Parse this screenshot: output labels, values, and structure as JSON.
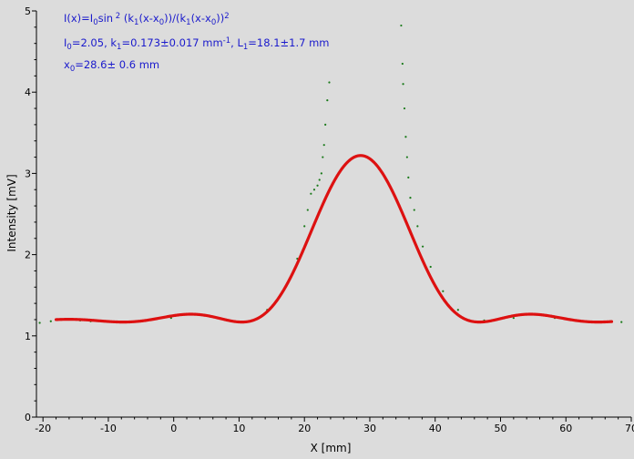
{
  "chart_data": {
    "type": "scatter",
    "xlabel": "X [mm]",
    "ylabel": "Intensity [mV]",
    "xlim": [
      -21,
      70
    ],
    "ylim": [
      0,
      5
    ],
    "x_ticks": [
      -20,
      -10,
      0,
      10,
      20,
      30,
      40,
      50,
      60,
      70
    ],
    "y_ticks": [
      0,
      1,
      2,
      3,
      4,
      5
    ],
    "grid": false,
    "annotations": [
      {
        "segments": [
          {
            "t": "I(x)=I"
          },
          {
            "t": "0",
            "sub": true
          },
          {
            "t": "sin"
          },
          {
            "t": " 2",
            "sup": true
          },
          {
            "t": " (k"
          },
          {
            "t": "1",
            "sub": true
          },
          {
            "t": "(x-x"
          },
          {
            "t": "0",
            "sub": true
          },
          {
            "t": "))/(k"
          },
          {
            "t": "1",
            "sub": true
          },
          {
            "t": "(x-x"
          },
          {
            "t": "0",
            "sub": true
          },
          {
            "t": "))"
          },
          {
            "t": "2",
            "sup": true
          }
        ]
      },
      {
        "segments": [
          {
            "t": "I"
          },
          {
            "t": "0",
            "sub": true
          },
          {
            "t": "=2.05,  k"
          },
          {
            "t": "1",
            "sub": true
          },
          {
            "t": "=0.173±0.017 mm"
          },
          {
            "t": "-1",
            "sup": true
          },
          {
            "t": ",   L"
          },
          {
            "t": "1",
            "sub": true
          },
          {
            "t": "=18.1±1.7 mm"
          }
        ]
      },
      {
        "segments": [
          {
            "t": "x"
          },
          {
            "t": "0",
            "sub": true
          },
          {
            "t": "=28.6±  0.6 mm"
          }
        ]
      }
    ],
    "series": [
      {
        "role": "fit",
        "color": "#dd1111",
        "formula": "I0*sin^2(k1*(x-x0))/(k1*(x-x0))^2 + offset",
        "params": {
          "I0": 2.05,
          "k1": 0.173,
          "x0": 28.6,
          "offset": 1.17
        },
        "x_range": [
          -18,
          67
        ]
      },
      {
        "role": "measured",
        "color": "#1a7a1a",
        "x": [
          -20.5,
          -18.8,
          -14.3,
          -12.7,
          -5.4,
          -0.4,
          14.3,
          17.8,
          18.9,
          20.0,
          20.5,
          21.0,
          21.5,
          22.0,
          22.3,
          22.6,
          22.8,
          23.0,
          23.2,
          23.5,
          23.8,
          34.8,
          35.0,
          35.1,
          35.3,
          35.5,
          35.7,
          35.9,
          36.2,
          36.8,
          37.3,
          38.1,
          39.3,
          41.2,
          43.5,
          47.5,
          52.0,
          58.3,
          64.0,
          66.8,
          68.5
        ],
        "y": [
          1.16,
          1.18,
          1.19,
          1.18,
          1.18,
          1.22,
          1.32,
          1.7,
          1.95,
          2.35,
          2.55,
          2.75,
          2.8,
          2.85,
          2.92,
          3.0,
          3.2,
          3.35,
          3.6,
          3.9,
          4.12,
          4.82,
          4.35,
          4.1,
          3.8,
          3.45,
          3.2,
          2.95,
          2.7,
          2.55,
          2.35,
          2.1,
          1.85,
          1.55,
          1.32,
          1.19,
          1.22,
          1.22,
          1.17,
          1.18,
          1.17
        ]
      }
    ]
  }
}
